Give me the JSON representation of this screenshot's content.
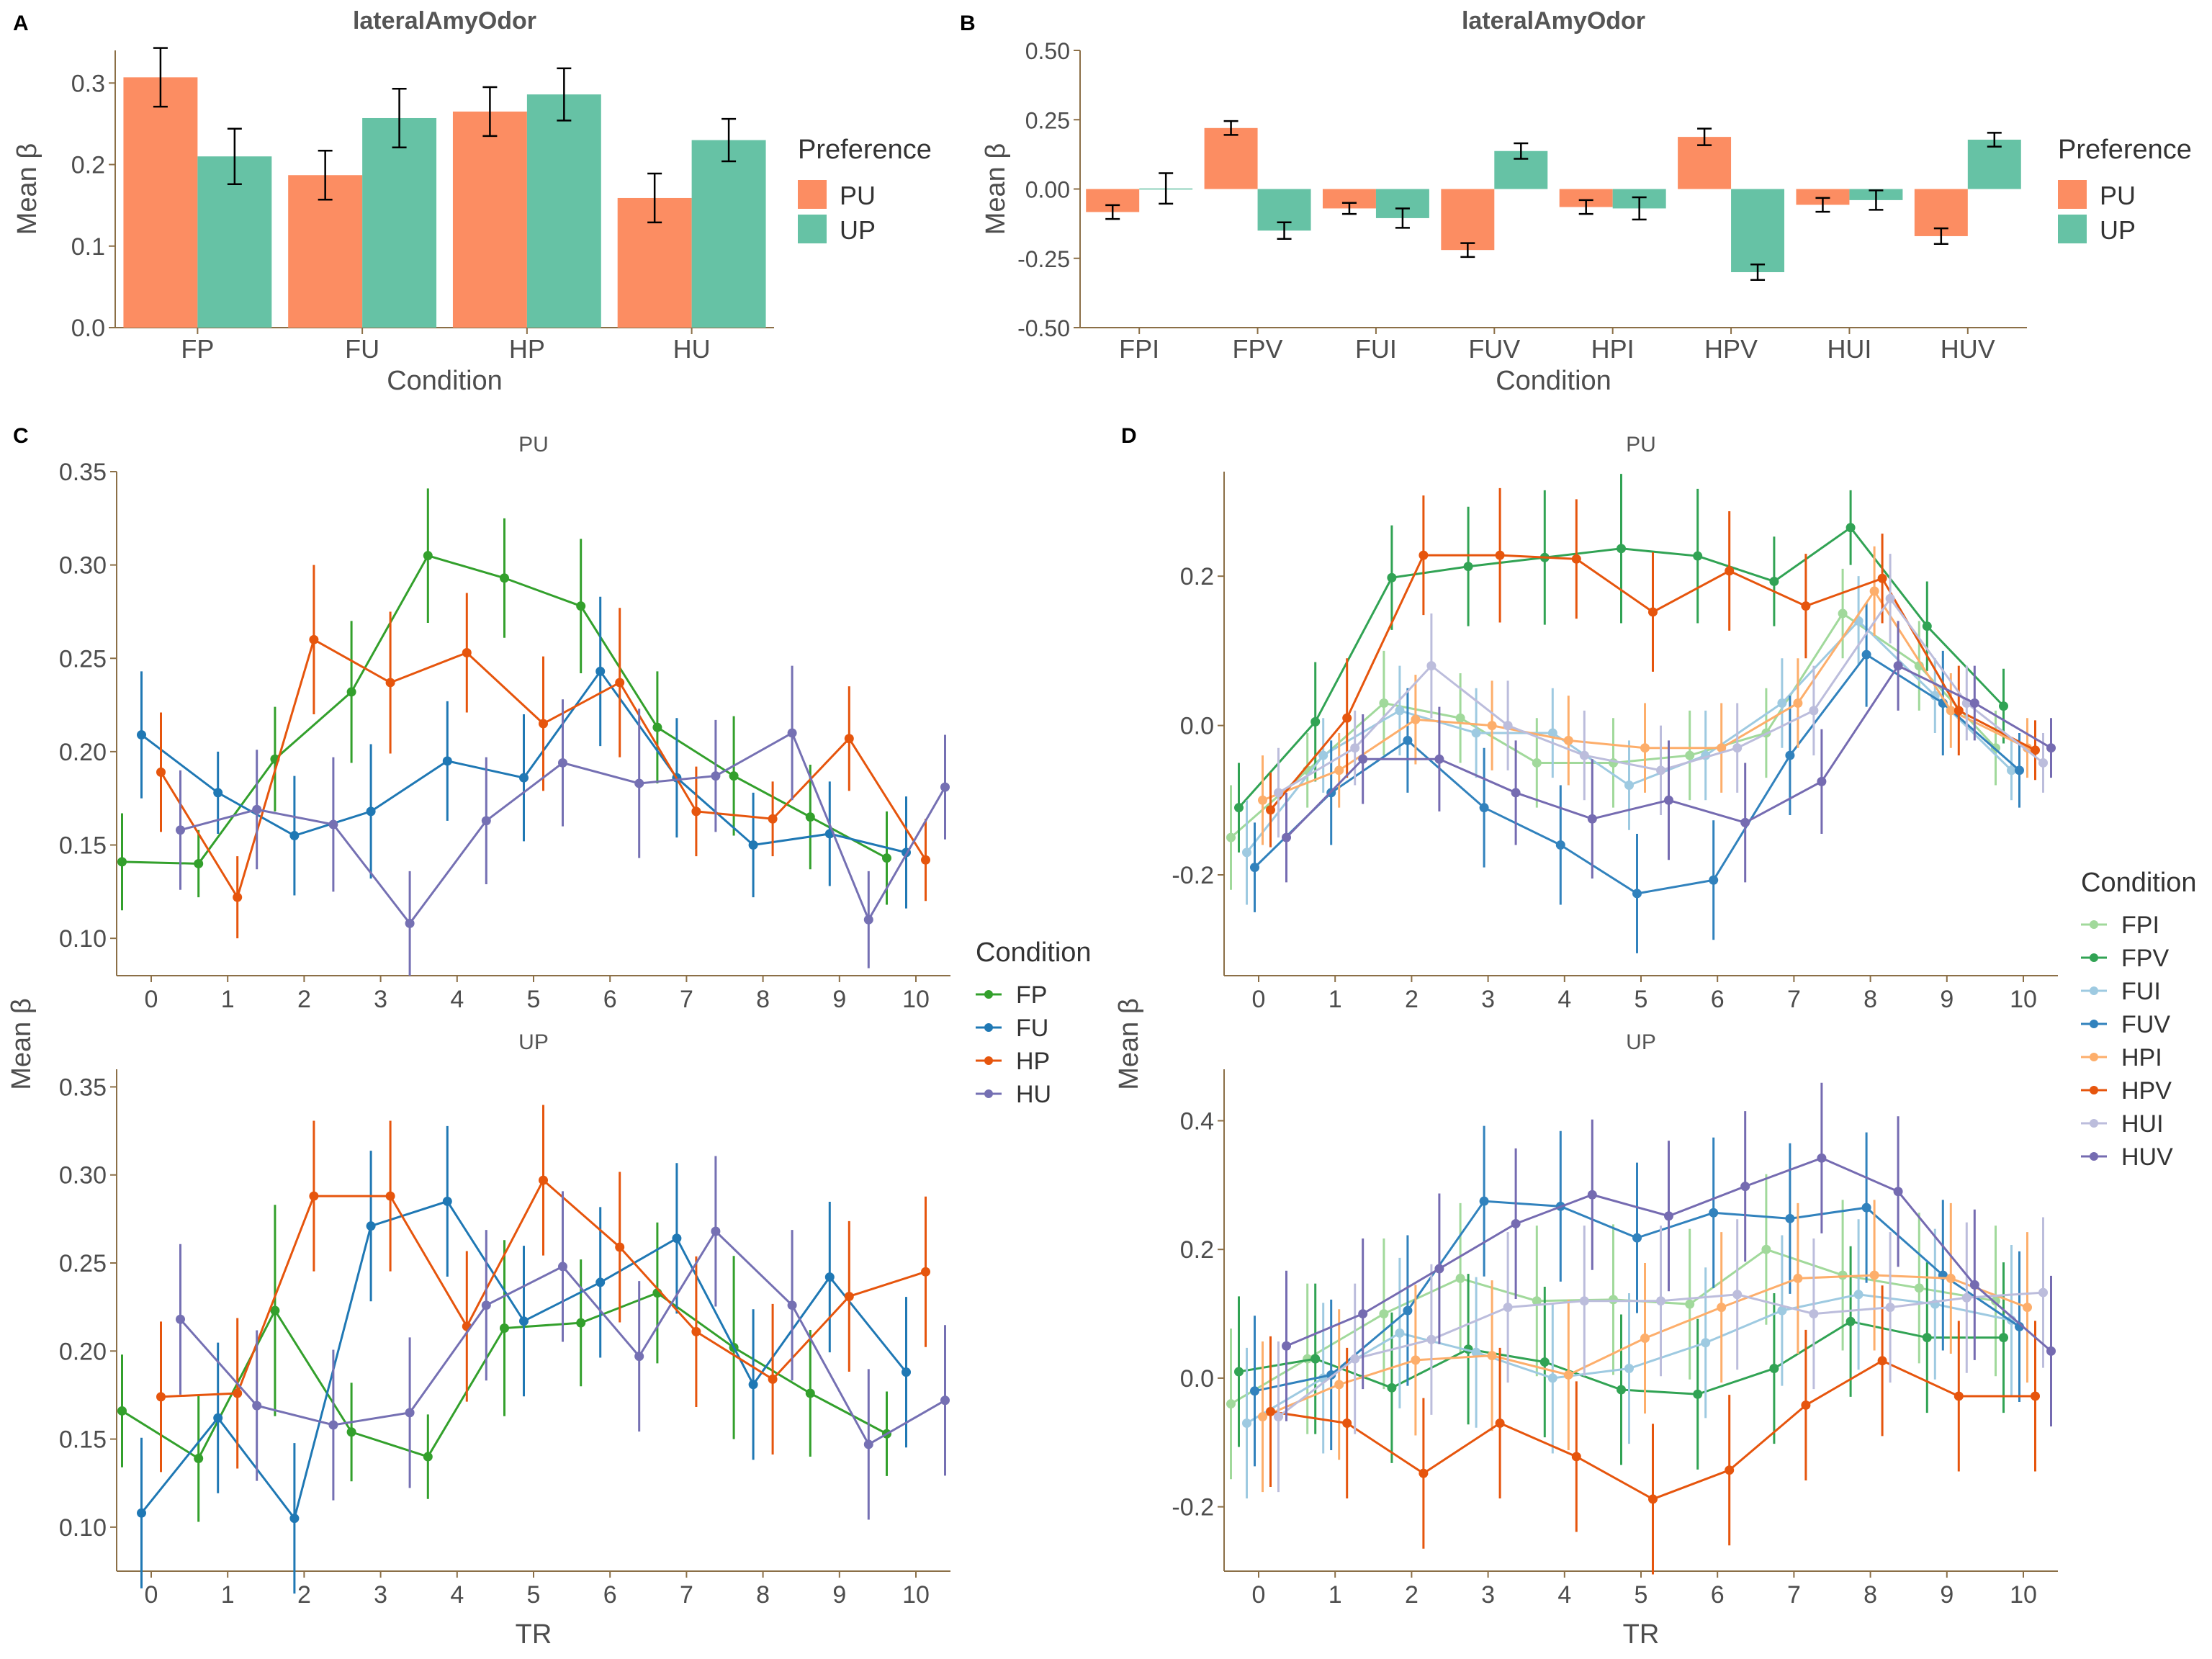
{
  "panel_labels": [
    "A",
    "B",
    "C",
    "D"
  ],
  "legend_titles": {
    "preference": "Preference",
    "condition": "Condition"
  },
  "chart_data": [
    {
      "id": "A",
      "type": "bar",
      "title": "lateralAmyOdor",
      "xlabel": "Condition",
      "ylabel": "Mean β",
      "ylim": [
        0,
        0.34
      ],
      "yticks": [
        0.0,
        0.1,
        0.2,
        0.3
      ],
      "ytick_labels": [
        "0.0",
        "0.1",
        "0.2",
        "0.3"
      ],
      "categories": [
        "FP",
        "FU",
        "HP",
        "HU"
      ],
      "legend_title": "Preference",
      "legend_position": "right",
      "series": [
        {
          "name": "PU",
          "color": "#FC8D62",
          "values": [
            0.307,
            0.187,
            0.265,
            0.159
          ],
          "err": [
            0.036,
            0.03,
            0.03,
            0.03
          ]
        },
        {
          "name": "UP",
          "color": "#66C2A5",
          "values": [
            0.21,
            0.257,
            0.286,
            0.23
          ],
          "err": [
            0.034,
            0.036,
            0.032,
            0.026
          ]
        }
      ]
    },
    {
      "id": "B",
      "type": "bar",
      "title": "lateralAmyOdor",
      "xlabel": "Condition",
      "ylabel": "Mean β",
      "ylim": [
        -0.5,
        0.5
      ],
      "yticks": [
        -0.5,
        -0.25,
        0.0,
        0.25,
        0.5
      ],
      "ytick_labels": [
        "-0.50",
        "-0.25",
        "0.00",
        "0.25",
        "0.50"
      ],
      "categories": [
        "FPI",
        "FPV",
        "FUI",
        "FUV",
        "HPI",
        "HPV",
        "HUI",
        "HUV"
      ],
      "legend_title": "Preference",
      "legend_position": "right",
      "series": [
        {
          "name": "PU",
          "color": "#FC8D62",
          "values": [
            -0.083,
            0.22,
            -0.07,
            -0.22,
            -0.065,
            0.188,
            -0.057,
            -0.17
          ],
          "err": [
            0.025,
            0.025,
            0.02,
            0.025,
            0.025,
            0.03,
            0.025,
            0.028
          ]
        },
        {
          "name": "UP",
          "color": "#66C2A5",
          "values": [
            0.002,
            -0.15,
            -0.105,
            0.137,
            -0.07,
            -0.3,
            -0.04,
            0.178
          ],
          "err": [
            0.055,
            0.03,
            0.035,
            0.028,
            0.04,
            0.028,
            0.035,
            0.025
          ]
        }
      ]
    },
    {
      "id": "C",
      "type": "line",
      "xlabel": "TR",
      "ylabel": "Mean β",
      "legend_title": "Condition",
      "legend_position": "right",
      "x_ticks": [
        0,
        1,
        2,
        3,
        4,
        5,
        6,
        7,
        8,
        9,
        10
      ],
      "dodge_order": [
        "FP",
        "FU",
        "HP",
        "HU"
      ],
      "colors": {
        "FP": "#33A02C",
        "FU": "#1F78B4",
        "HP": "#E6550D",
        "HU": "#7570B3"
      },
      "facets": [
        {
          "label": "PU",
          "ylim": [
            0.08,
            0.35
          ],
          "yticks": [
            0.1,
            0.15,
            0.2,
            0.25,
            0.3,
            0.35
          ],
          "ytick_labels": [
            "0.10",
            "0.15",
            "0.20",
            "0.25",
            "0.30",
            "0.35"
          ],
          "series": [
            {
              "name": "FP",
              "values": [
                0.141,
                0.14,
                0.196,
                0.232,
                0.305,
                0.293,
                0.278,
                0.213,
                0.187,
                0.165,
                0.143
              ],
              "err": [
                0.026,
                0.018,
                0.028,
                0.038,
                0.036,
                0.032,
                0.036,
                0.03,
                0.032,
                0.028,
                0.025
              ]
            },
            {
              "name": "FU",
              "values": [
                0.209,
                0.178,
                0.155,
                0.168,
                0.195,
                0.186,
                0.243,
                0.186,
                0.15,
                0.156,
                0.146
              ],
              "err": [
                0.034,
                0.022,
                0.032,
                0.036,
                0.032,
                0.034,
                0.04,
                0.032,
                0.028,
                0.028,
                0.03
              ]
            },
            {
              "name": "HP",
              "values": [
                0.189,
                0.122,
                0.26,
                0.237,
                0.253,
                0.215,
                0.237,
                0.168,
                0.164,
                0.207,
                0.142
              ],
              "err": [
                0.032,
                0.022,
                0.04,
                0.038,
                0.032,
                0.036,
                0.04,
                0.024,
                0.02,
                0.028,
                0.022
              ]
            },
            {
              "name": "HU",
              "values": [
                0.158,
                0.169,
                0.161,
                0.108,
                0.163,
                0.194,
                0.183,
                0.187,
                0.21,
                0.11,
                0.181
              ],
              "err": [
                0.032,
                0.032,
                0.036,
                0.028,
                0.034,
                0.034,
                0.04,
                0.03,
                0.036,
                0.026,
                0.028
              ]
            }
          ]
        },
        {
          "label": "UP",
          "ylim": [
            0.075,
            0.36
          ],
          "yticks": [
            0.1,
            0.15,
            0.2,
            0.25,
            0.3,
            0.35
          ],
          "ytick_labels": [
            "0.10",
            "0.15",
            "0.20",
            "0.25",
            "0.30",
            "0.35"
          ],
          "series": [
            {
              "name": "FP",
              "values": [
                0.166,
                0.139,
                0.223,
                0.154,
                0.14,
                0.213,
                0.216,
                0.233,
                0.202,
                0.176,
                0.153
              ],
              "err": [
                0.032,
                0.036,
                0.06,
                0.028,
                0.024,
                0.05,
                0.036,
                0.04,
                0.052,
                0.036,
                0.024
              ]
            },
            {
              "name": "FU",
              "values": [
                0.108,
                0.162,
                0.105,
                0.271,
                0.285,
                0.217,
                0.239,
                0.264,
                0.181,
                0.242,
                0.188
              ]
            },
            {
              "name": "HP",
              "values": [
                0.174,
                0.176,
                0.288,
                0.288,
                0.214,
                0.297,
                0.259,
                0.211,
                0.184,
                0.231,
                0.245
              ]
            },
            {
              "name": "HU",
              "values": [
                0.218,
                0.169,
                0.158,
                0.165,
                0.226,
                0.248,
                0.197,
                0.268,
                0.226,
                0.147,
                0.172
              ]
            }
          ]
        }
      ]
    },
    {
      "id": "D",
      "type": "line",
      "xlabel": "TR",
      "ylabel": "Mean β",
      "legend_title": "Condition",
      "legend_position": "right",
      "x_ticks": [
        0,
        1,
        2,
        3,
        4,
        5,
        6,
        7,
        8,
        9,
        10
      ],
      "dodge_order": [
        "FPI",
        "FPV",
        "FUI",
        "FUV",
        "HPI",
        "HPV",
        "HUI",
        "HUV"
      ],
      "colors": {
        "FPI": "#A1D99B",
        "FPV": "#31A354",
        "FUI": "#9ECAE1",
        "FUV": "#3182BD",
        "HPI": "#FDAE6B",
        "HPV": "#E6550D",
        "HUI": "#BCBDDC",
        "HUV": "#756BB1"
      },
      "facets": [
        {
          "label": "PU",
          "ylim": [
            -0.335,
            0.34
          ],
          "yticks": [
            -0.2,
            0.0,
            0.2
          ],
          "ytick_labels": [
            "-0.2",
            "0.0",
            "0.2"
          ],
          "series": [
            {
              "name": "FPI",
              "values": [
                -0.15,
                -0.06,
                0.03,
                0.01,
                -0.05,
                -0.05,
                -0.04,
                -0.01,
                0.15,
                0.08,
                -0.03
              ],
              "err": [
                0.07,
                0.05,
                0.07,
                0.06,
                0.06,
                0.06,
                0.06,
                0.06,
                0.06,
                0.06,
                0.05
              ]
            },
            {
              "name": "FPV",
              "values": [
                -0.11,
                0.005,
                0.198,
                0.213,
                0.225,
                0.237,
                0.227,
                0.193,
                0.265,
                0.133,
                0.026
              ],
              "err": [
                0.06,
                0.08,
                0.07,
                0.08,
                0.09,
                0.1,
                0.09,
                0.06,
                0.05,
                0.06,
                0.05
              ]
            },
            {
              "name": "FUI",
              "values": [
                -0.17,
                -0.04,
                0.02,
                -0.01,
                -0.01,
                -0.08,
                -0.04,
                0.03,
                0.14,
                0.04,
                -0.06
              ],
              "err": [
                0.07,
                0.05,
                0.06,
                0.06,
                0.06,
                0.06,
                0.06,
                0.06,
                0.06,
                0.05,
                0.04
              ]
            },
            {
              "name": "FUV",
              "values": [
                -0.19,
                -0.09,
                -0.02,
                -0.11,
                -0.16,
                -0.225,
                -0.207,
                -0.04,
                0.095,
                0.03,
                -0.06
              ],
              "err": [
                0.06,
                0.07,
                0.07,
                0.08,
                0.08,
                0.08,
                0.08,
                0.08,
                0.07,
                0.07,
                0.05
              ]
            },
            {
              "name": "HPI",
              "values": [
                -0.1,
                -0.06,
                0.008,
                0.0,
                -0.02,
                -0.03,
                -0.03,
                0.03,
                0.18,
                0.02,
                -0.03
              ],
              "err": [
                0.06,
                0.05,
                0.06,
                0.06,
                0.06,
                0.06,
                0.06,
                0.06,
                0.06,
                0.05,
                0.04
              ]
            },
            {
              "name": "HPV",
              "values": [
                -0.113,
                0.01,
                0.228,
                0.228,
                0.223,
                0.152,
                0.207,
                0.16,
                0.197,
                0.02,
                -0.033
              ],
              "err": [
                0.05,
                0.08,
                0.08,
                0.09,
                0.08,
                0.08,
                0.08,
                0.07,
                0.06,
                0.06,
                0.04
              ]
            },
            {
              "name": "HUI",
              "values": [
                -0.09,
                -0.03,
                0.08,
                0.0,
                -0.04,
                -0.06,
                -0.03,
                0.02,
                0.17,
                0.03,
                -0.05
              ],
              "err": [
                0.06,
                0.05,
                0.07,
                0.06,
                0.06,
                0.06,
                0.06,
                0.06,
                0.06,
                0.05,
                0.04
              ]
            },
            {
              "name": "HUV",
              "values": [
                -0.15,
                -0.045,
                -0.045,
                -0.09,
                -0.125,
                -0.1,
                -0.13,
                -0.075,
                0.08,
                0.03,
                -0.03
              ],
              "err": [
                0.06,
                0.06,
                0.07,
                0.07,
                0.08,
                0.08,
                0.08,
                0.07,
                0.06,
                0.05,
                0.04
              ]
            }
          ]
        },
        {
          "label": "UP",
          "ylim": [
            -0.3,
            0.48
          ],
          "yticks": [
            -0.2,
            0.0,
            0.2,
            0.4
          ],
          "ytick_labels": [
            "-0.2",
            "0.0",
            "0.2",
            "0.4"
          ],
          "series": [
            {
              "name": "FPI",
              "values": [
                -0.04,
                0.03,
                0.1,
                0.155,
                0.12,
                0.122,
                0.115,
                0.2,
                0.16,
                0.14,
                0.12
              ]
            },
            {
              "name": "FPV",
              "values": [
                0.01,
                0.03,
                -0.015,
                0.045,
                0.025,
                -0.018,
                -0.025,
                0.015,
                0.088,
                0.063,
                0.063
              ]
            },
            {
              "name": "FUI",
              "values": [
                -0.07,
                0.0,
                0.07,
                0.04,
                0.0,
                0.015,
                0.055,
                0.105,
                0.13,
                0.115,
                0.09
              ]
            },
            {
              "name": "FUV",
              "values": [
                -0.02,
                0.005,
                0.105,
                0.275,
                0.267,
                0.218,
                0.257,
                0.248,
                0.265,
                0.16,
                0.08
              ]
            },
            {
              "name": "HPI",
              "values": [
                -0.06,
                -0.01,
                0.028,
                0.035,
                0.005,
                0.062,
                0.11,
                0.155,
                0.16,
                0.155,
                0.11
              ]
            },
            {
              "name": "HPV",
              "values": [
                -0.052,
                -0.07,
                -0.148,
                -0.07,
                -0.122,
                -0.188,
                -0.143,
                -0.042,
                0.027,
                -0.028,
                -0.028
              ]
            },
            {
              "name": "HUI",
              "values": [
                -0.06,
                0.03,
                0.06,
                0.11,
                0.12,
                0.12,
                0.13,
                0.1,
                0.11,
                0.125,
                0.133
              ]
            },
            {
              "name": "HUV",
              "values": [
                0.05,
                0.1,
                0.17,
                0.24,
                0.285,
                0.252,
                0.298,
                0.342,
                0.29,
                0.145,
                0.042
              ]
            }
          ]
        }
      ]
    }
  ]
}
